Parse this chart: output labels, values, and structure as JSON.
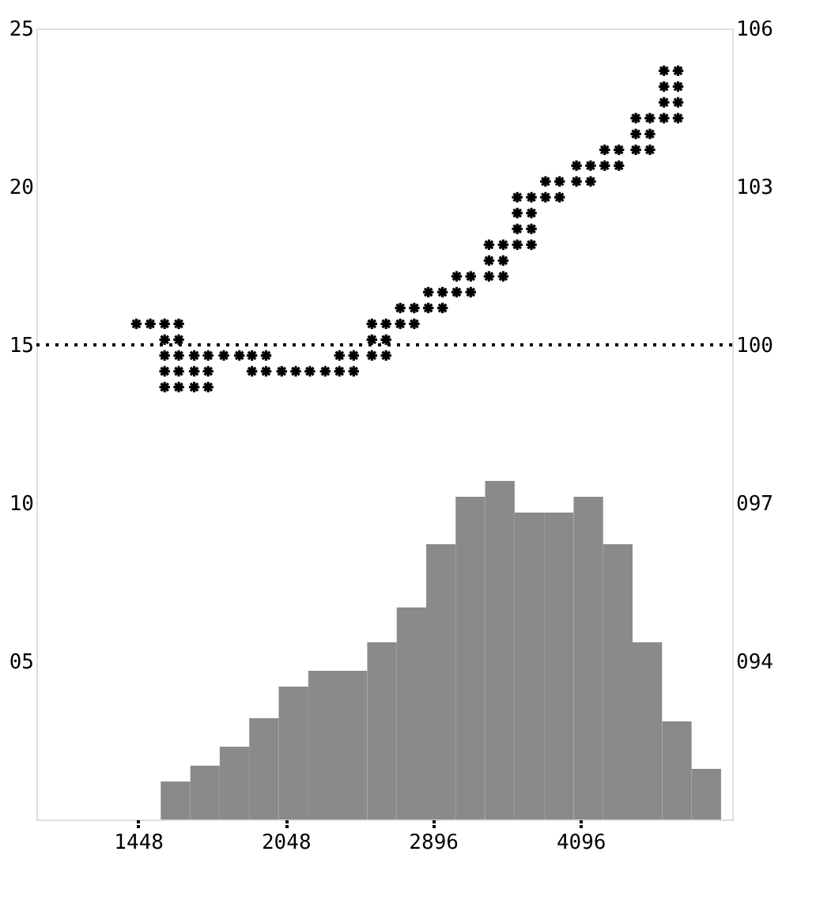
{
  "chart_data": {
    "type": "histogram",
    "xlim": [
      1140,
      5850
    ],
    "log": "x",
    "xticks": [
      1448,
      2048,
      2896,
      4096
    ],
    "ylim": [
      0,
      25
    ],
    "yticks": [
      {
        "value": 5,
        "label": "05"
      },
      10,
      15,
      20,
      25
    ],
    "y2lim": [
      91,
      106
    ],
    "y2ticks": [
      {
        "value": 94,
        "label": "094"
      },
      {
        "value": 97,
        "label": "097"
      },
      100,
      103,
      106
    ],
    "grid": false,
    "ref_lines": [
      {
        "axis": "y2",
        "value": 100,
        "line_style": "dotted",
        "color": "#000000"
      }
    ],
    "series": [
      {
        "color": "#8a8a8a",
        "bins": [
          1527,
          1637,
          1754,
          1880,
          2015,
          2160,
          2314,
          2481,
          2659,
          2850,
          3054,
          3273,
          3508,
          3760,
          4030,
          4319,
          4629,
          4961,
          5317,
          5699
        ],
        "values": [
          1.2,
          1.7,
          2.3,
          3.2,
          4.2,
          4.7,
          4.7,
          5.6,
          6.7,
          8.7,
          10.2,
          10.7,
          9.7,
          9.7,
          10.2,
          8.7,
          5.6,
          3.1,
          1.6
        ]
      },
      {
        "type": "scatter",
        "axis": "y2",
        "color": "#000000",
        "marker": "cross",
        "x": [
          1442,
          1490,
          1541,
          1541,
          1541,
          1541,
          1541,
          1593,
          1593,
          1593,
          1593,
          1593,
          1652,
          1652,
          1652,
          1707,
          1707,
          1707,
          1771,
          1837,
          1892,
          1892,
          1956,
          1956,
          2029,
          2097,
          2168,
          2248,
          2324,
          2324,
          2403,
          2403,
          2508,
          2508,
          2508,
          2593,
          2593,
          2593,
          2681,
          2681,
          2771,
          2771,
          2864,
          2864,
          2961,
          2961,
          3061,
          3061,
          3164,
          3164,
          3303,
          3303,
          3303,
          3415,
          3415,
          3415,
          3530,
          3530,
          3530,
          3530,
          3649,
          3649,
          3649,
          3649,
          3772,
          3772,
          3899,
          3899,
          4057,
          4057,
          4194,
          4194,
          4335,
          4335,
          4482,
          4482,
          4664,
          4664,
          4664,
          4821,
          4821,
          4821,
          4983,
          4983,
          4983,
          4983,
          5151,
          5151,
          5151,
          5151
        ],
        "values": [
          100.4,
          100.4,
          100.4,
          100.1,
          99.8,
          99.5,
          99.2,
          100.4,
          100.1,
          99.8,
          99.5,
          99.2,
          99.8,
          99.5,
          99.2,
          99.8,
          99.5,
          99.2,
          99.8,
          99.8,
          99.8,
          99.5,
          99.8,
          99.5,
          99.5,
          99.5,
          99.5,
          99.5,
          99.8,
          99.5,
          99.8,
          99.5,
          100.4,
          100.1,
          99.8,
          100.4,
          100.1,
          99.8,
          100.7,
          100.4,
          100.7,
          100.4,
          101.0,
          100.7,
          101.0,
          100.7,
          101.3,
          101.0,
          101.3,
          101.0,
          101.9,
          101.6,
          101.3,
          101.9,
          101.6,
          101.3,
          102.8,
          102.5,
          102.2,
          101.9,
          102.8,
          102.5,
          102.2,
          101.9,
          103.1,
          102.8,
          103.1,
          102.8,
          103.4,
          103.1,
          103.4,
          103.1,
          103.7,
          103.4,
          103.7,
          103.4,
          104.3,
          104.0,
          103.7,
          104.3,
          104.0,
          103.7,
          105.2,
          104.9,
          104.6,
          104.3,
          105.2,
          104.9,
          104.6,
          104.3
        ]
      }
    ]
  }
}
